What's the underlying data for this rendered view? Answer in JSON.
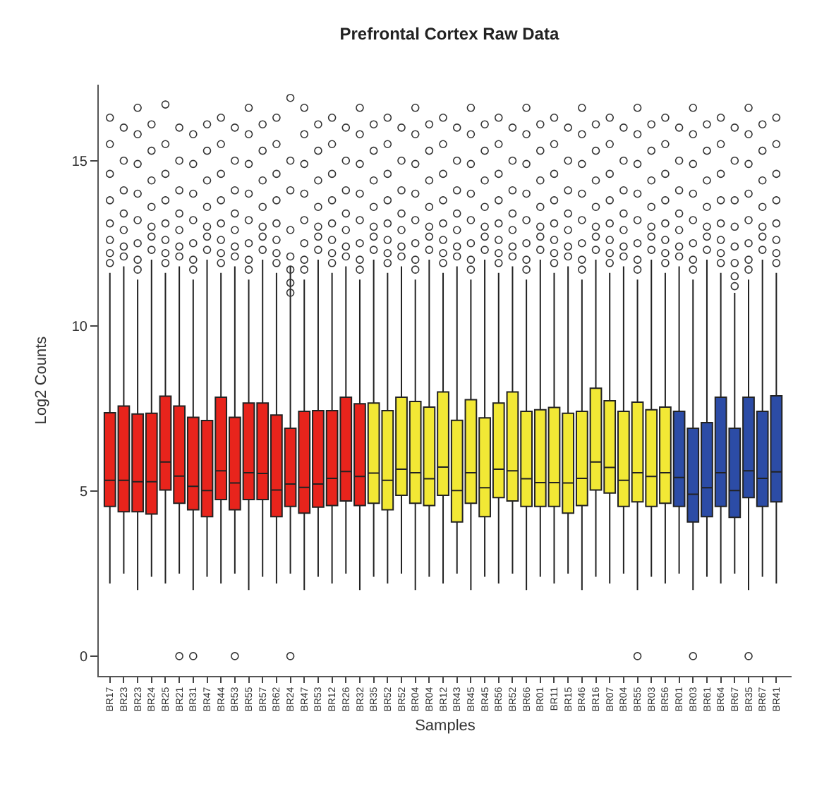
{
  "chart_data": {
    "type": "box",
    "title": "Prefrontal Cortex Raw Data",
    "xlabel": "Samples",
    "ylabel": "Log2 Counts",
    "categories": [
      "BR17",
      "BR23",
      "BR23",
      "BR24",
      "BR25",
      "BR21",
      "BR31",
      "BR47",
      "BR44",
      "BR53",
      "BR55",
      "BR57",
      "BR62",
      "BR24",
      "BR47",
      "BR53",
      "BR12",
      "BR26",
      "BR32",
      "BR35",
      "BR52",
      "BR52",
      "BR04",
      "BR04",
      "BR12",
      "BR43",
      "BR45",
      "BR45",
      "BR56",
      "BR52",
      "BR66",
      "BR01",
      "BR11",
      "BR15",
      "BR46",
      "BR16",
      "BR07",
      "BR04",
      "BR55",
      "BR03",
      "BR56",
      "BR01",
      "BR03",
      "BR61",
      "BR64",
      "BR67",
      "BR35",
      "BR67",
      "BR41"
    ],
    "colors": [
      "#e8241c",
      "#e8241c",
      "#e8241c",
      "#e8241c",
      "#e8241c",
      "#e8241c",
      "#e8241c",
      "#e8241c",
      "#e8241c",
      "#e8241c",
      "#e8241c",
      "#e8241c",
      "#e8241c",
      "#e8241c",
      "#e8241c",
      "#e8241c",
      "#e8241c",
      "#e8241c",
      "#e8241c",
      "#f2e835",
      "#f2e835",
      "#f2e835",
      "#f2e835",
      "#f2e835",
      "#f2e835",
      "#f2e835",
      "#f2e835",
      "#f2e835",
      "#f2e835",
      "#f2e835",
      "#f2e835",
      "#f2e835",
      "#f2e835",
      "#f2e835",
      "#f2e835",
      "#f2e835",
      "#f2e835",
      "#f2e835",
      "#f2e835",
      "#f2e835",
      "#f2e835",
      "#2c4ca6",
      "#2c4ca6",
      "#2c4ca6",
      "#2c4ca6",
      "#2c4ca6",
      "#2c4ca6",
      "#2c4ca6",
      "#2c4ca6"
    ],
    "ylim": [
      -0.6,
      17.3
    ],
    "yticks": [
      0,
      5,
      10,
      15
    ],
    "marker": "circle",
    "boxes": [
      {
        "low": 2.2,
        "q1": 4.53,
        "median": 5.32,
        "q3": 7.37,
        "high": 11.6,
        "outliers": [
          11.9,
          12.2,
          12.6,
          13.1,
          13.8,
          14.6,
          15.5,
          16.3
        ]
      },
      {
        "low": 2.5,
        "q1": 4.37,
        "median": 5.32,
        "q3": 7.57,
        "high": 11.8,
        "outliers": [
          12.1,
          12.4,
          12.9,
          13.4,
          14.1,
          15.0,
          16.0
        ]
      },
      {
        "low": 2.0,
        "q1": 4.37,
        "median": 5.28,
        "q3": 7.33,
        "high": 11.4,
        "outliers": [
          11.7,
          12.0,
          12.5,
          13.2,
          14.0,
          14.9,
          15.8,
          16.6
        ]
      },
      {
        "low": 2.4,
        "q1": 4.3,
        "median": 5.28,
        "q3": 7.35,
        "high": 12.0,
        "outliers": [
          12.3,
          12.7,
          13.0,
          13.6,
          14.4,
          15.3,
          16.1
        ]
      },
      {
        "low": 2.2,
        "q1": 5.03,
        "median": 5.88,
        "q3": 7.87,
        "high": 11.6,
        "outliers": [
          11.9,
          12.2,
          12.6,
          13.1,
          13.8,
          14.6,
          15.5,
          16.7
        ]
      },
      {
        "low": 2.5,
        "q1": 4.63,
        "median": 5.45,
        "q3": 7.57,
        "high": 11.8,
        "outliers": [
          0,
          12.1,
          12.4,
          12.9,
          13.4,
          14.1,
          15.0,
          16.0
        ]
      },
      {
        "low": 2.0,
        "q1": 4.43,
        "median": 5.14,
        "q3": 7.23,
        "high": 11.4,
        "outliers": [
          0,
          11.7,
          12.0,
          12.5,
          13.2,
          14.0,
          14.9,
          15.8
        ]
      },
      {
        "low": 2.4,
        "q1": 4.22,
        "median": 5.01,
        "q3": 7.13,
        "high": 12.0,
        "outliers": [
          12.3,
          12.7,
          13.0,
          13.6,
          14.4,
          15.3,
          16.1
        ]
      },
      {
        "low": 2.2,
        "q1": 4.74,
        "median": 5.61,
        "q3": 7.84,
        "high": 11.6,
        "outliers": [
          11.9,
          12.2,
          12.6,
          13.1,
          13.8,
          14.6,
          15.5,
          16.3
        ]
      },
      {
        "low": 2.5,
        "q1": 4.43,
        "median": 5.24,
        "q3": 7.23,
        "high": 11.8,
        "outliers": [
          0,
          12.1,
          12.4,
          12.9,
          13.4,
          14.1,
          15.0,
          16.0
        ]
      },
      {
        "low": 2.0,
        "q1": 4.74,
        "median": 5.55,
        "q3": 7.66,
        "high": 11.4,
        "outliers": [
          11.7,
          12.0,
          12.5,
          13.2,
          14.0,
          14.9,
          15.8,
          16.6
        ]
      },
      {
        "low": 2.4,
        "q1": 4.74,
        "median": 5.53,
        "q3": 7.66,
        "high": 12.0,
        "outliers": [
          12.3,
          12.7,
          13.0,
          13.6,
          14.4,
          15.3,
          16.1
        ]
      },
      {
        "low": 2.2,
        "q1": 4.22,
        "median": 5.03,
        "q3": 7.3,
        "high": 11.6,
        "outliers": [
          11.9,
          12.2,
          12.6,
          13.1,
          13.8,
          14.6,
          15.5,
          16.3
        ]
      },
      {
        "low": 2.5,
        "q1": 4.53,
        "median": 5.21,
        "q3": 6.9,
        "high": 11.8,
        "outliers": [
          0,
          11.0,
          11.3,
          11.7,
          12.1,
          12.9,
          14.1,
          15.0,
          16.9
        ]
      },
      {
        "low": 2.0,
        "q1": 4.33,
        "median": 5.11,
        "q3": 7.41,
        "high": 11.4,
        "outliers": [
          11.7,
          12.0,
          12.5,
          13.2,
          14.0,
          14.9,
          15.8,
          16.6
        ]
      },
      {
        "low": 2.4,
        "q1": 4.51,
        "median": 5.21,
        "q3": 7.43,
        "high": 12.0,
        "outliers": [
          12.3,
          12.7,
          13.0,
          13.6,
          14.4,
          15.3,
          16.1
        ]
      },
      {
        "low": 2.2,
        "q1": 4.56,
        "median": 5.38,
        "q3": 7.43,
        "high": 11.6,
        "outliers": [
          11.9,
          12.2,
          12.6,
          13.1,
          13.8,
          14.6,
          15.5,
          16.3
        ]
      },
      {
        "low": 2.5,
        "q1": 4.7,
        "median": 5.59,
        "q3": 7.84,
        "high": 11.8,
        "outliers": [
          12.1,
          12.4,
          12.9,
          13.4,
          14.1,
          15.0,
          16.0
        ]
      },
      {
        "low": 2.0,
        "q1": 4.56,
        "median": 5.44,
        "q3": 7.64,
        "high": 11.4,
        "outliers": [
          11.7,
          12.0,
          12.5,
          13.2,
          14.0,
          14.9,
          15.8,
          16.6
        ]
      },
      {
        "low": 2.4,
        "q1": 4.63,
        "median": 5.54,
        "q3": 7.66,
        "high": 12.0,
        "outliers": [
          12.3,
          12.7,
          13.0,
          13.6,
          14.4,
          15.3,
          16.1
        ]
      },
      {
        "low": 2.2,
        "q1": 4.43,
        "median": 5.32,
        "q3": 7.43,
        "high": 11.6,
        "outliers": [
          11.9,
          12.2,
          12.6,
          13.1,
          13.8,
          14.6,
          15.5,
          16.3
        ]
      },
      {
        "low": 2.5,
        "q1": 4.87,
        "median": 5.66,
        "q3": 7.84,
        "high": 11.8,
        "outliers": [
          12.1,
          12.4,
          12.9,
          13.4,
          14.1,
          15.0,
          16.0
        ]
      },
      {
        "low": 2.0,
        "q1": 4.63,
        "median": 5.55,
        "q3": 7.71,
        "high": 11.4,
        "outliers": [
          11.7,
          12.0,
          12.5,
          13.2,
          14.0,
          14.9,
          15.8,
          16.6
        ]
      },
      {
        "low": 2.4,
        "q1": 4.56,
        "median": 5.37,
        "q3": 7.54,
        "high": 12.0,
        "outliers": [
          12.3,
          12.7,
          13.0,
          13.6,
          14.4,
          15.3,
          16.1
        ]
      },
      {
        "low": 2.2,
        "q1": 4.87,
        "median": 5.72,
        "q3": 8.0,
        "high": 11.6,
        "outliers": [
          11.9,
          12.2,
          12.6,
          13.1,
          13.8,
          14.6,
          15.5,
          16.3
        ]
      },
      {
        "low": 2.5,
        "q1": 4.06,
        "median": 5.01,
        "q3": 7.14,
        "high": 11.8,
        "outliers": [
          12.1,
          12.4,
          12.9,
          13.4,
          14.1,
          15.0,
          16.0
        ]
      },
      {
        "low": 2.0,
        "q1": 4.63,
        "median": 5.55,
        "q3": 7.76,
        "high": 11.4,
        "outliers": [
          11.7,
          12.0,
          12.5,
          13.2,
          14.0,
          14.9,
          15.8,
          16.6
        ]
      },
      {
        "low": 2.4,
        "q1": 4.22,
        "median": 5.1,
        "q3": 7.21,
        "high": 12.0,
        "outliers": [
          12.3,
          12.7,
          13.0,
          13.6,
          14.4,
          15.3,
          16.1
        ]
      },
      {
        "low": 2.2,
        "q1": 4.8,
        "median": 5.66,
        "q3": 7.66,
        "high": 11.6,
        "outliers": [
          11.9,
          12.2,
          12.6,
          13.1,
          13.8,
          14.6,
          15.5,
          16.3
        ]
      },
      {
        "low": 2.5,
        "q1": 4.7,
        "median": 5.61,
        "q3": 8.0,
        "high": 11.8,
        "outliers": [
          12.1,
          12.4,
          12.9,
          13.4,
          14.1,
          15.0,
          16.0
        ]
      },
      {
        "low": 2.0,
        "q1": 4.53,
        "median": 5.37,
        "q3": 7.41,
        "high": 11.4,
        "outliers": [
          11.7,
          12.0,
          12.5,
          13.2,
          14.0,
          14.9,
          15.8,
          16.6
        ]
      },
      {
        "low": 2.4,
        "q1": 4.53,
        "median": 5.25,
        "q3": 7.46,
        "high": 12.0,
        "outliers": [
          12.3,
          12.7,
          13.0,
          13.6,
          14.4,
          15.3,
          16.1
        ]
      },
      {
        "low": 2.2,
        "q1": 4.53,
        "median": 5.25,
        "q3": 7.53,
        "high": 11.6,
        "outliers": [
          11.9,
          12.2,
          12.6,
          13.1,
          13.8,
          14.6,
          15.5,
          16.3
        ]
      },
      {
        "low": 2.5,
        "q1": 4.33,
        "median": 5.24,
        "q3": 7.35,
        "high": 11.8,
        "outliers": [
          12.1,
          12.4,
          12.9,
          13.4,
          14.1,
          15.0,
          16.0
        ]
      },
      {
        "low": 2.0,
        "q1": 4.56,
        "median": 5.38,
        "q3": 7.41,
        "high": 11.4,
        "outliers": [
          11.7,
          12.0,
          12.5,
          13.2,
          14.0,
          14.9,
          15.8,
          16.6
        ]
      },
      {
        "low": 2.4,
        "q1": 5.03,
        "median": 5.88,
        "q3": 8.11,
        "high": 12.0,
        "outliers": [
          12.3,
          12.7,
          13.0,
          13.6,
          14.4,
          15.3,
          16.1
        ]
      },
      {
        "low": 2.2,
        "q1": 4.94,
        "median": 5.71,
        "q3": 7.73,
        "high": 11.6,
        "outliers": [
          11.9,
          12.2,
          12.6,
          13.1,
          13.8,
          14.6,
          15.5,
          16.3
        ]
      },
      {
        "low": 2.5,
        "q1": 4.53,
        "median": 5.32,
        "q3": 7.41,
        "high": 11.8,
        "outliers": [
          12.1,
          12.4,
          12.9,
          13.4,
          14.1,
          15.0,
          16.0
        ]
      },
      {
        "low": 2.0,
        "q1": 4.67,
        "median": 5.55,
        "q3": 7.69,
        "high": 11.4,
        "outliers": [
          0,
          11.7,
          12.0,
          12.5,
          13.2,
          14.0,
          14.9,
          15.8,
          16.6
        ]
      },
      {
        "low": 2.4,
        "q1": 4.53,
        "median": 5.44,
        "q3": 7.46,
        "high": 12.0,
        "outliers": [
          12.3,
          12.7,
          13.0,
          13.6,
          14.4,
          15.3,
          16.1
        ]
      },
      {
        "low": 2.2,
        "q1": 4.63,
        "median": 5.55,
        "q3": 7.54,
        "high": 11.6,
        "outliers": [
          11.9,
          12.2,
          12.6,
          13.1,
          13.8,
          14.6,
          15.5,
          16.3
        ]
      },
      {
        "low": 2.5,
        "q1": 4.53,
        "median": 5.41,
        "q3": 7.41,
        "high": 11.8,
        "outliers": [
          12.1,
          12.4,
          12.9,
          13.4,
          14.1,
          15.0,
          16.0
        ]
      },
      {
        "low": 2.0,
        "q1": 4.06,
        "median": 4.9,
        "q3": 6.9,
        "high": 11.4,
        "outliers": [
          0,
          11.7,
          12.0,
          12.5,
          13.2,
          14.0,
          14.9,
          15.8,
          16.6
        ]
      },
      {
        "low": 2.4,
        "q1": 4.22,
        "median": 5.1,
        "q3": 7.07,
        "high": 12.0,
        "outliers": [
          12.3,
          12.7,
          13.0,
          13.6,
          14.4,
          15.3,
          16.1
        ]
      },
      {
        "low": 2.2,
        "q1": 4.53,
        "median": 5.55,
        "q3": 7.84,
        "high": 11.6,
        "outliers": [
          11.9,
          12.2,
          12.6,
          13.1,
          13.8,
          14.6,
          15.5,
          16.3
        ]
      },
      {
        "low": 2.5,
        "q1": 4.2,
        "median": 5.01,
        "q3": 6.9,
        "high": 11.0,
        "outliers": [
          11.2,
          11.5,
          11.9,
          12.4,
          13.0,
          13.8,
          15.0,
          16.0
        ]
      },
      {
        "low": 2.0,
        "q1": 4.8,
        "median": 5.61,
        "q3": 7.84,
        "high": 11.4,
        "outliers": [
          0,
          11.7,
          12.0,
          12.5,
          13.2,
          14.0,
          14.9,
          15.8,
          16.6
        ]
      },
      {
        "low": 2.4,
        "q1": 4.53,
        "median": 5.38,
        "q3": 7.41,
        "high": 12.0,
        "outliers": [
          12.3,
          12.7,
          13.0,
          13.6,
          14.4,
          15.3,
          16.1
        ]
      },
      {
        "low": 2.2,
        "q1": 4.67,
        "median": 5.58,
        "q3": 7.88,
        "high": 11.6,
        "outliers": [
          11.9,
          12.2,
          12.6,
          13.1,
          13.8,
          14.6,
          15.5,
          16.3
        ]
      }
    ]
  }
}
